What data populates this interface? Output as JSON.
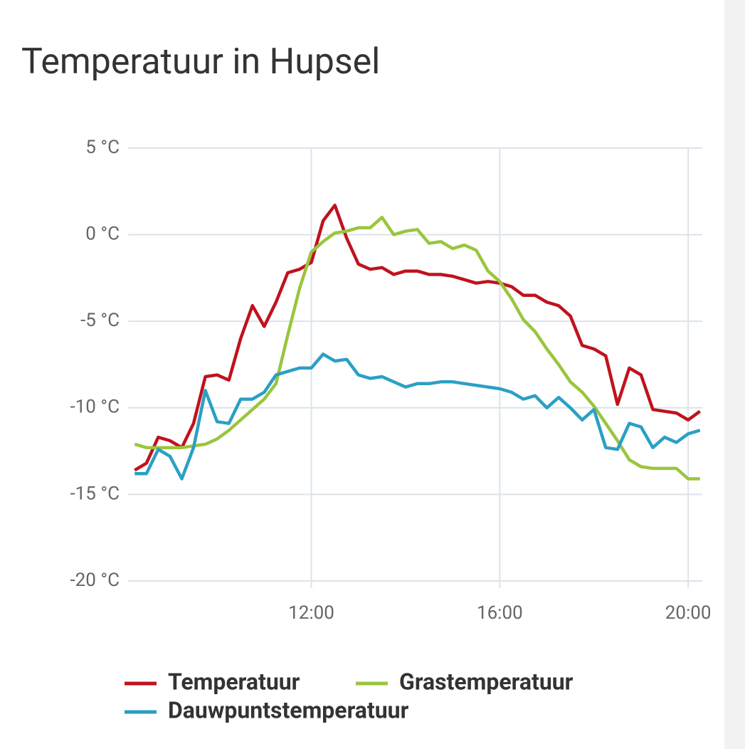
{
  "chart_data": {
    "type": "line",
    "title": "Temperatuur in Hupsel",
    "x": [
      8.25,
      8.5,
      8.75,
      9,
      9.25,
      9.5,
      9.75,
      10,
      10.25,
      10.5,
      10.75,
      11,
      11.25,
      11.5,
      11.75,
      12,
      12.25,
      12.5,
      12.75,
      13,
      13.25,
      13.5,
      13.75,
      14,
      14.25,
      14.5,
      14.75,
      15,
      15.25,
      15.5,
      15.75,
      16,
      16.25,
      16.5,
      16.75,
      17,
      17.25,
      17.5,
      17.75,
      18,
      18.25,
      18.5,
      18.75,
      19,
      19.25,
      19.5,
      19.75,
      20,
      20.25
    ],
    "series": [
      {
        "name": "Temperatuur",
        "color": "#c0121e",
        "values": [
          -13.6,
          -13.2,
          -11.7,
          -11.9,
          -12.3,
          -10.9,
          -8.2,
          -8.1,
          -8.4,
          -6.0,
          -4.1,
          -5.3,
          -3.9,
          -2.2,
          -2.0,
          -1.6,
          0.8,
          1.7,
          -0.2,
          -1.7,
          -2.0,
          -1.9,
          -2.3,
          -2.1,
          -2.1,
          -2.3,
          -2.3,
          -2.4,
          -2.6,
          -2.8,
          -2.7,
          -2.8,
          -3.0,
          -3.5,
          -3.5,
          -3.9,
          -4.1,
          -4.7,
          -6.4,
          -6.6,
          -7.0,
          -9.8,
          -7.7,
          -8.1,
          -10.1,
          -10.2,
          -10.3,
          -10.7,
          -10.2
        ]
      },
      {
        "name": "Grastemperatuur",
        "color": "#9bc53d",
        "values": [
          -12.1,
          -12.3,
          -12.3,
          -12.3,
          -12.3,
          -12.2,
          -12.1,
          -11.8,
          -11.3,
          -10.7,
          -10.1,
          -9.5,
          -8.6,
          -5.8,
          -3.1,
          -1.0,
          -0.4,
          0.1,
          0.2,
          0.4,
          0.4,
          1.0,
          0.0,
          0.2,
          0.3,
          -0.5,
          -0.4,
          -0.8,
          -0.6,
          -0.9,
          -2.1,
          -2.7,
          -3.7,
          -4.9,
          -5.6,
          -6.6,
          -7.5,
          -8.5,
          -9.1,
          -9.9,
          -10.9,
          -11.9,
          -13.0,
          -13.4,
          -13.5,
          -13.5,
          -13.5,
          -14.1,
          -14.1
        ]
      },
      {
        "name": "Dauwpuntstemperatuur",
        "color": "#2aa0c4",
        "values": [
          -13.8,
          -13.8,
          -12.4,
          -12.8,
          -14.1,
          -12.3,
          -9.0,
          -10.8,
          -10.9,
          -9.5,
          -9.5,
          -9.1,
          -8.1,
          -7.9,
          -7.7,
          -7.7,
          -6.9,
          -7.3,
          -7.2,
          -8.1,
          -8.3,
          -8.2,
          -8.5,
          -8.8,
          -8.6,
          -8.6,
          -8.5,
          -8.5,
          -8.6,
          -8.7,
          -8.8,
          -8.9,
          -9.1,
          -9.5,
          -9.3,
          -10.0,
          -9.4,
          -10.0,
          -10.7,
          -10.1,
          -12.3,
          -12.4,
          -10.9,
          -11.1,
          -12.3,
          -11.7,
          -12.0,
          -11.5,
          -11.3
        ]
      }
    ],
    "xlim": [
      8.11,
      20.3
    ],
    "xticks": [
      {
        "value": 12,
        "label": "12:00"
      },
      {
        "value": 16,
        "label": "16:00"
      },
      {
        "value": 20,
        "label": "20:00"
      }
    ],
    "ylim": [
      -20,
      5
    ],
    "yticks": [
      {
        "value": 5,
        "label": "5 °C"
      },
      {
        "value": 0,
        "label": "0 °C"
      },
      {
        "value": -5,
        "label": "-5 °C"
      },
      {
        "value": -10,
        "label": "-10 °C"
      },
      {
        "value": -15,
        "label": "-15 °C"
      },
      {
        "value": -20,
        "label": "-20 °C"
      }
    ],
    "grid": true,
    "legend": "bottom"
  }
}
